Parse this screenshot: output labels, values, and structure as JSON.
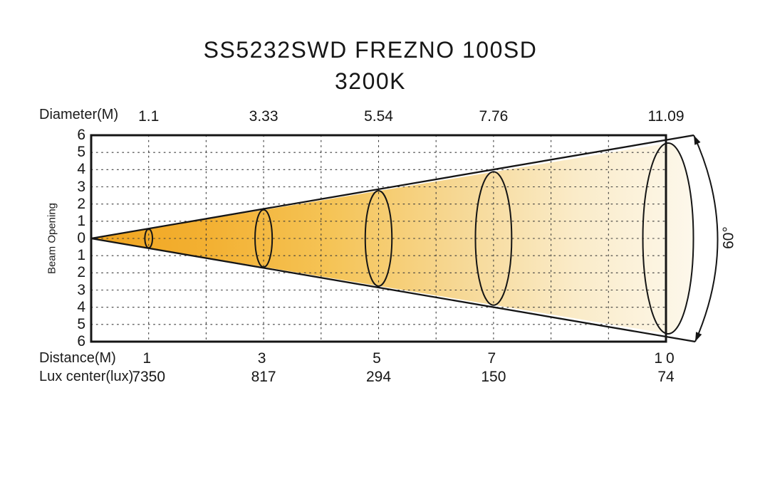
{
  "chart_data": {
    "type": "area",
    "diagram_kind": "photometric-beam-cone",
    "title": "SS5232SWD FREZNO 100SD",
    "subtitle": "3200K",
    "beam_angle_label": "60°",
    "rows": {
      "diameter_label": "Diameter(M)",
      "distance_label": "Distance(M)",
      "lux_label": "Lux center(lux)"
    },
    "y_axis": {
      "label": "Beam Opening",
      "ticks": [
        "6",
        "5",
        "4",
        "3",
        "2",
        "1",
        "0",
        "1",
        "2",
        "3",
        "4",
        "5",
        "6"
      ],
      "range": [
        -6,
        6
      ],
      "grid": "dotted"
    },
    "x_axis": {
      "range_m": [
        0,
        10
      ],
      "gridline_every_m": 1,
      "grid": "dotted"
    },
    "points": [
      {
        "distance_m": 1,
        "distance_text": "1",
        "diameter_m": 1.1,
        "diameter_text": "1.1",
        "lux_center": 7350,
        "lux_text": "7350"
      },
      {
        "distance_m": 3,
        "distance_text": "3",
        "diameter_m": 3.33,
        "diameter_text": "3.33",
        "lux_center": 817,
        "lux_text": "817"
      },
      {
        "distance_m": 5,
        "distance_text": "5",
        "diameter_m": 5.54,
        "diameter_text": "5.54",
        "lux_center": 294,
        "lux_text": "294"
      },
      {
        "distance_m": 7,
        "distance_text": "7",
        "diameter_m": 7.76,
        "diameter_text": "7.76",
        "lux_center": 150,
        "lux_text": "150"
      },
      {
        "distance_m": 10,
        "distance_text": "10",
        "diameter_m": 11.09,
        "diameter_text": "11.09",
        "lux_center": 74,
        "lux_text": "74"
      }
    ],
    "colors": {
      "beam_gradient": [
        "#F0A41F",
        "#F3B133",
        "#F5C457",
        "#F6D792",
        "#FAEBC8",
        "#FDF8EC"
      ],
      "outline": "#151515",
      "gridline": "#3a3a3a",
      "text": "#161616"
    },
    "legend_position": "none"
  }
}
